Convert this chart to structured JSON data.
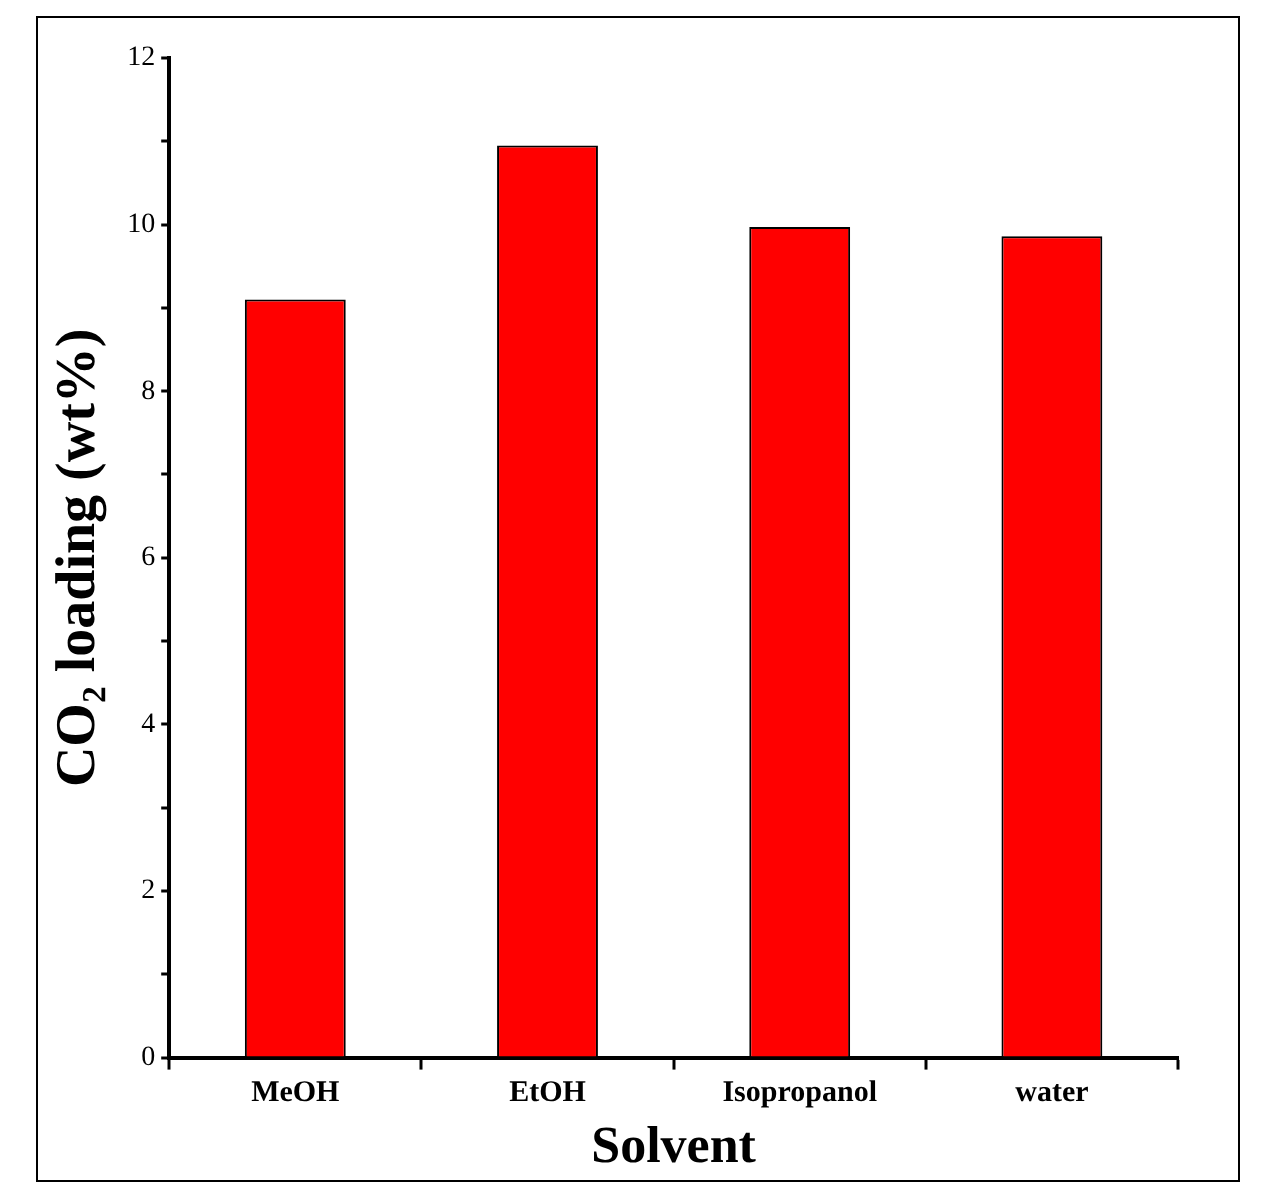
{
  "chart_data": {
    "type": "bar",
    "xlabel": "Solvent",
    "ylabel": "CO₂ loading (wt%)",
    "categories": [
      "MeOH",
      "EtOH",
      "Isopropanol",
      "water"
    ],
    "values": [
      9.1,
      10.95,
      9.97,
      9.86
    ],
    "color": "#ff0000",
    "ylim": [
      0,
      12
    ],
    "yticks": [
      0,
      2,
      4,
      6,
      8,
      10,
      12
    ],
    "grid": false,
    "legend": false
  }
}
